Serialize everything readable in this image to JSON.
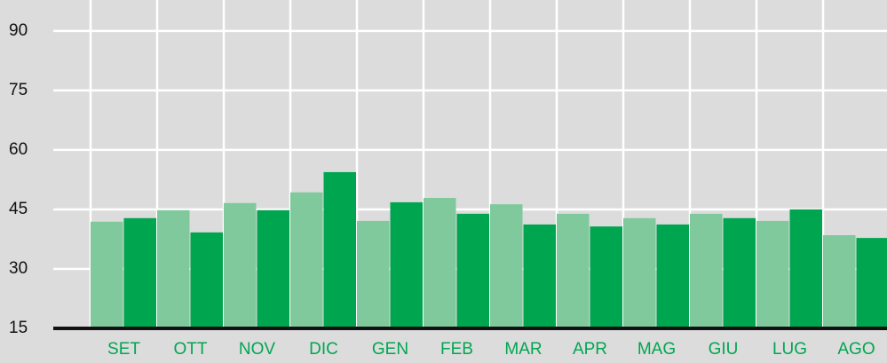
{
  "chart_data": {
    "type": "bar",
    "categories": [
      "SET",
      "OTT",
      "NOV",
      "DIC",
      "GEN",
      "FEB",
      "MAR",
      "APR",
      "MAG",
      "GIU",
      "LUG",
      "AGO"
    ],
    "series": [
      {
        "color": "#80c99c",
        "values": [
          41.9,
          44.8,
          46.6,
          49.3,
          42.1,
          47.9,
          46.3,
          43.9,
          42.8,
          43.9,
          42.1,
          38.5
        ]
      },
      {
        "color": "#00a550",
        "values": [
          42.8,
          39.2,
          44.8,
          54.4,
          46.8,
          43.9,
          41.2,
          40.7,
          41.2,
          42.8,
          45.0,
          37.8
        ]
      }
    ],
    "ylim": [
      15,
      97.8
    ],
    "yticks": [
      15,
      30,
      45,
      60,
      75,
      90
    ],
    "grid": true
  }
}
